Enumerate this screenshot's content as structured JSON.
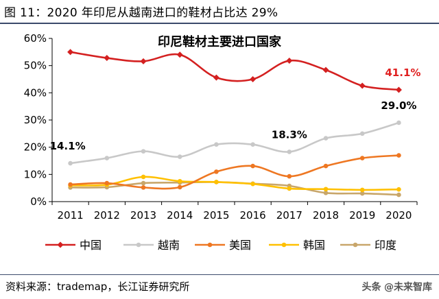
{
  "figure": {
    "title": "图  11：2020 年印尼从越南进口的鞋材占比达 29%",
    "source": "资料来源：trademap，长江证券研究所",
    "watermark_prefix": "头条",
    "watermark_name": "@未来智库"
  },
  "chart_data": {
    "type": "line",
    "title": "印尼鞋材主要进口国家",
    "xlabel": "",
    "ylabel": "",
    "x": [
      "2011",
      "2012",
      "2013",
      "2014",
      "2015",
      "2016",
      "2017",
      "2018",
      "2019",
      "2020"
    ],
    "ylim": [
      0,
      60
    ],
    "yticks": [
      "0%",
      "10%",
      "20%",
      "30%",
      "40%",
      "50%",
      "60%"
    ],
    "grid": false,
    "legend_position": "bottom",
    "series": [
      {
        "name": "中国",
        "color": "#d42020",
        "marker": "diamond",
        "values": [
          55,
          52.8,
          51.6,
          54.0,
          45.6,
          45.0,
          51.8,
          48.4,
          42.6,
          41.1
        ]
      },
      {
        "name": "越南",
        "color": "#c8c8c8",
        "marker": "circle",
        "values": [
          14.1,
          16.0,
          18.5,
          16.5,
          21.0,
          21.0,
          18.3,
          23.3,
          25.0,
          29.0
        ]
      },
      {
        "name": "美国",
        "color": "#ee7722",
        "marker": "circle",
        "values": [
          6.3,
          6.8,
          5.2,
          5.3,
          11.0,
          13.1,
          9.3,
          13.1,
          16.0,
          17.0
        ]
      },
      {
        "name": "韩国",
        "color": "#ffc000",
        "marker": "circle",
        "values": [
          6.0,
          6.2,
          9.1,
          7.5,
          7.2,
          6.5,
          4.8,
          4.6,
          4.3,
          4.5
        ]
      },
      {
        "name": "印度",
        "color": "#c8a66a",
        "marker": "circle",
        "values": [
          5.2,
          5.3,
          6.8,
          7.0,
          7.2,
          6.6,
          5.8,
          3.2,
          3.0,
          2.5
        ]
      }
    ],
    "annotations": [
      {
        "text": "41.1%",
        "series": "中国",
        "x": "2020",
        "color": "#e02020"
      },
      {
        "text": "29.0%",
        "series": "越南",
        "x": "2020",
        "color": "#000000"
      },
      {
        "text": "18.3%",
        "series": "越南",
        "x": "2017",
        "color": "#000000"
      },
      {
        "text": "14.1%",
        "series": "越南",
        "x": "2011",
        "color": "#000000"
      }
    ]
  }
}
